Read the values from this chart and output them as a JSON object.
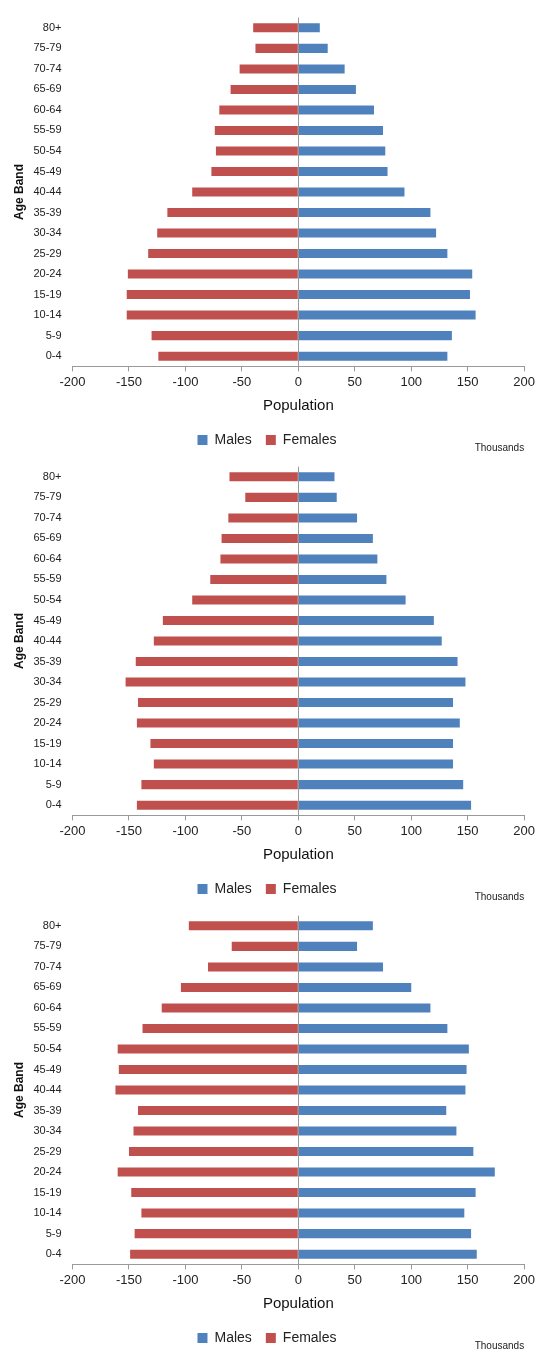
{
  "chart_data": [
    {
      "type": "bar",
      "orientation": "horizontal",
      "stacked": true,
      "xlabel": "Population",
      "ylabel": "Age Band",
      "annotations": [
        "Thousands"
      ],
      "legend": "bottom",
      "categories": [
        "80+",
        "75-79",
        "70-74",
        "65-69",
        "60-64",
        "55-59",
        "50-54",
        "45-49",
        "40-44",
        "35-39",
        "30-34",
        "25-29",
        "20-24",
        "15-19",
        "10-14",
        "5-9",
        "0-4"
      ],
      "xlim": [
        -200,
        200
      ],
      "xticks": [
        -200,
        -150,
        -100,
        -50,
        0,
        50,
        100,
        150,
        200
      ],
      "series": [
        {
          "name": "Males",
          "color": "#4f81bd",
          "values": [
            19,
            26,
            41,
            51,
            67,
            75,
            77,
            79,
            94,
            117,
            122,
            132,
            154,
            152,
            157,
            136,
            132
          ]
        },
        {
          "name": "Females",
          "color": "#c0504d",
          "values": [
            -40,
            -38,
            -52,
            -60,
            -70,
            -74,
            -73,
            -77,
            -94,
            -116,
            -125,
            -133,
            -151,
            -152,
            -152,
            -130,
            -124
          ]
        }
      ]
    },
    {
      "type": "bar",
      "orientation": "horizontal",
      "stacked": true,
      "xlabel": "Population",
      "ylabel": "Age Band",
      "annotations": [
        "Thousands"
      ],
      "legend": "bottom",
      "categories": [
        "80+",
        "75-79",
        "70-74",
        "65-69",
        "60-64",
        "55-59",
        "50-54",
        "45-49",
        "40-44",
        "35-39",
        "30-34",
        "25-29",
        "20-24",
        "15-19",
        "10-14",
        "5-9",
        "0-4"
      ],
      "xlim": [
        -200,
        200
      ],
      "xticks": [
        -200,
        -150,
        -100,
        -50,
        0,
        50,
        100,
        150,
        200
      ],
      "series": [
        {
          "name": "Males",
          "color": "#4f81bd",
          "values": [
            32,
            34,
            52,
            66,
            70,
            78,
            95,
            120,
            127,
            141,
            148,
            137,
            143,
            137,
            137,
            146,
            153
          ]
        },
        {
          "name": "Females",
          "color": "#c0504d",
          "values": [
            -61,
            -47,
            -62,
            -68,
            -69,
            -78,
            -94,
            -120,
            -128,
            -144,
            -153,
            -142,
            -143,
            -131,
            -128,
            -139,
            -143
          ]
        }
      ]
    },
    {
      "type": "bar",
      "orientation": "horizontal",
      "stacked": true,
      "xlabel": "Population",
      "ylabel": "Age Band",
      "annotations": [
        "Thousands"
      ],
      "legend": "bottom",
      "categories": [
        "80+",
        "75-79",
        "70-74",
        "65-69",
        "60-64",
        "55-59",
        "50-54",
        "45-49",
        "40-44",
        "35-39",
        "30-34",
        "25-29",
        "20-24",
        "15-19",
        "10-14",
        "5-9",
        "0-4"
      ],
      "xlim": [
        -200,
        200
      ],
      "xticks": [
        -200,
        -150,
        -100,
        -50,
        0,
        50,
        100,
        150,
        200
      ],
      "series": [
        {
          "name": "Males",
          "color": "#4f81bd",
          "values": [
            66,
            52,
            75,
            100,
            117,
            132,
            151,
            149,
            148,
            131,
            140,
            155,
            174,
            157,
            147,
            153,
            158
          ]
        },
        {
          "name": "Females",
          "color": "#c0504d",
          "values": [
            -97,
            -59,
            -80,
            -104,
            -121,
            -138,
            -160,
            -159,
            -162,
            -142,
            -146,
            -150,
            -160,
            -148,
            -139,
            -145,
            -149
          ]
        }
      ]
    }
  ]
}
